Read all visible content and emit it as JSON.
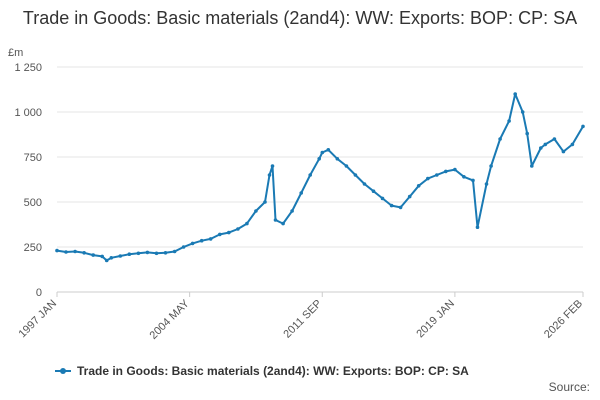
{
  "chart_data": {
    "type": "line",
    "title": "Trade in Goods: Basic materials (2and4): WW: Exports: BOP: CP: SA",
    "ylabel": "£m",
    "ylim": [
      0,
      1250
    ],
    "yticks": [
      0,
      250,
      500,
      750,
      1000,
      1250
    ],
    "ytick_labels": [
      "0",
      "250",
      "500",
      "750",
      "1 000",
      "1 250"
    ],
    "xlim": [
      "1997-01",
      "2026-02"
    ],
    "xticks": [
      "1997 JAN",
      "2004 MAY",
      "2011 SEP",
      "2019 JAN",
      "2026 FEB"
    ],
    "grid": true,
    "legend_position": "bottom",
    "source_label": "Source:",
    "series": [
      {
        "name": "Trade in Goods: Basic materials (2and4): WW: Exports: BOP: CP: SA",
        "color": "#1a7ab4",
        "points": [
          [
            "1997-01",
            230
          ],
          [
            "1997-07",
            222
          ],
          [
            "1998-01",
            225
          ],
          [
            "1998-07",
            218
          ],
          [
            "1999-01",
            205
          ],
          [
            "1999-07",
            198
          ],
          [
            "1999-10",
            175
          ],
          [
            "2000-01",
            190
          ],
          [
            "2000-07",
            200
          ],
          [
            "2001-01",
            210
          ],
          [
            "2001-07",
            215
          ],
          [
            "2002-01",
            220
          ],
          [
            "2002-07",
            215
          ],
          [
            "2003-01",
            218
          ],
          [
            "2003-07",
            225
          ],
          [
            "2004-01",
            250
          ],
          [
            "2004-07",
            270
          ],
          [
            "2005-01",
            285
          ],
          [
            "2005-07",
            295
          ],
          [
            "2006-01",
            320
          ],
          [
            "2006-07",
            330
          ],
          [
            "2007-01",
            350
          ],
          [
            "2007-07",
            380
          ],
          [
            "2008-01",
            450
          ],
          [
            "2008-07",
            500
          ],
          [
            "2008-10",
            650
          ],
          [
            "2008-12",
            700
          ],
          [
            "2009-02",
            400
          ],
          [
            "2009-07",
            380
          ],
          [
            "2010-01",
            450
          ],
          [
            "2010-07",
            550
          ],
          [
            "2011-01",
            650
          ],
          [
            "2011-07",
            740
          ],
          [
            "2011-09",
            775
          ],
          [
            "2012-01",
            790
          ],
          [
            "2012-07",
            740
          ],
          [
            "2013-01",
            700
          ],
          [
            "2013-07",
            650
          ],
          [
            "2014-01",
            600
          ],
          [
            "2014-07",
            560
          ],
          [
            "2015-01",
            520
          ],
          [
            "2015-07",
            480
          ],
          [
            "2016-01",
            470
          ],
          [
            "2016-07",
            530
          ],
          [
            "2017-01",
            590
          ],
          [
            "2017-07",
            630
          ],
          [
            "2018-01",
            650
          ],
          [
            "2018-07",
            670
          ],
          [
            "2019-01",
            680
          ],
          [
            "2019-07",
            640
          ],
          [
            "2020-01",
            620
          ],
          [
            "2020-04",
            360
          ],
          [
            "2020-10",
            600
          ],
          [
            "2021-01",
            700
          ],
          [
            "2021-07",
            850
          ],
          [
            "2022-01",
            950
          ],
          [
            "2022-05",
            1100
          ],
          [
            "2022-10",
            1000
          ],
          [
            "2023-01",
            880
          ],
          [
            "2023-04",
            700
          ],
          [
            "2023-10",
            800
          ],
          [
            "2024-01",
            820
          ],
          [
            "2024-07",
            850
          ],
          [
            "2025-01",
            780
          ],
          [
            "2025-07",
            820
          ],
          [
            "2026-02",
            920
          ]
        ]
      }
    ]
  }
}
